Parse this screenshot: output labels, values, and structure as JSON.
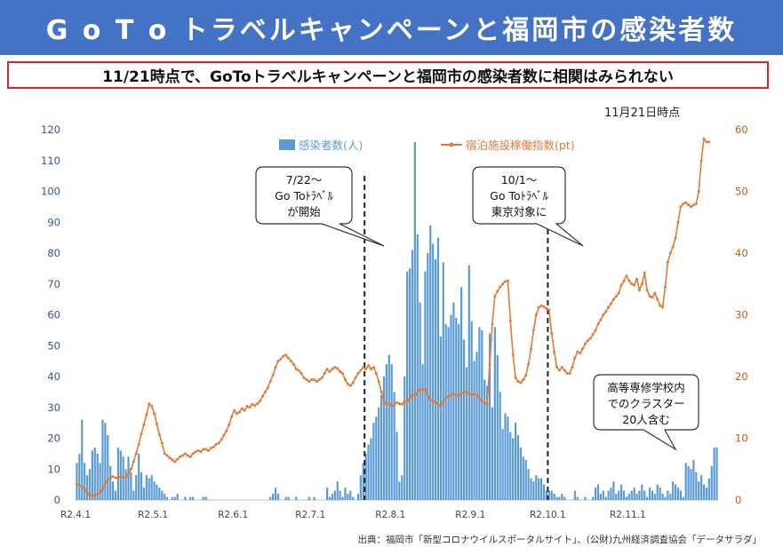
{
  "header": {
    "title": "G o T o トラベルキャンペーンと福岡市の感染者数",
    "subtitle": "11/21時点で、GoToトラベルキャンペーンと福岡市の感染者数に相関はみられない",
    "as_of": "11月21日時点",
    "source": "出典：福岡市「新型コロナウイルスポータルサイト」、(公財)九州経済調査協会「データサラダ」"
  },
  "colors": {
    "banner": "#4472c4",
    "bars": "#5b9bd5",
    "line": "#e07b39",
    "callout_border": "#333333",
    "subtitle_border": "#d9262b"
  },
  "chart_data": {
    "type": "bar+line",
    "x_ticks": [
      "R2.4.1",
      "R2.5.1",
      "R2.6.1",
      "R2.7.1",
      "R2.8.1",
      "R2.9.1",
      "R2.10.1",
      "R2.11.1"
    ],
    "x_tick_days": [
      0,
      30,
      61,
      91,
      122,
      153,
      183,
      214
    ],
    "y_left": {
      "min": 0,
      "max": 120,
      "step": 10
    },
    "y_right": {
      "min": 0,
      "max": 60,
      "step": 10
    },
    "series": [
      {
        "name": "感染者数(人)",
        "type": "bar",
        "axis": "left",
        "values": [
          12,
          15,
          26,
          12,
          8,
          10,
          16,
          17,
          15,
          12,
          26,
          25,
          21,
          11,
          6,
          3,
          17,
          16,
          14,
          10,
          14,
          9,
          3,
          8,
          15,
          9,
          4,
          8,
          7,
          8,
          6,
          5,
          4,
          3,
          2,
          1,
          0,
          1,
          1,
          2,
          0,
          0,
          1,
          0,
          1,
          1,
          0,
          0,
          0,
          1,
          1,
          0,
          0,
          0,
          0,
          0,
          0,
          0,
          0,
          0,
          0,
          0,
          0,
          0,
          0,
          0,
          0,
          0,
          0,
          0,
          0,
          0,
          0,
          0,
          0,
          1,
          2,
          4,
          2,
          0,
          0,
          1,
          1,
          0,
          0,
          1,
          0,
          0,
          0,
          0,
          1,
          0,
          1,
          0,
          0,
          0,
          0,
          4,
          1,
          2,
          3,
          6,
          3,
          1,
          4,
          2,
          3,
          1,
          0,
          2,
          8,
          12,
          15,
          18,
          20,
          25,
          27,
          30,
          34,
          40,
          44,
          47,
          44,
          35,
          22,
          6,
          8,
          40,
          74,
          75,
          81,
          116,
          86,
          64,
          44,
          74,
          80,
          89,
          83,
          78,
          85,
          53,
          77,
          57,
          56,
          60,
          64,
          59,
          57,
          69,
          52,
          43,
          76,
          58,
          45,
          48,
          56,
          55,
          39,
          37,
          54,
          30,
          56,
          47,
          35,
          23,
          28,
          27,
          22,
          20,
          25,
          21,
          17,
          14,
          13,
          10,
          7,
          6,
          8,
          7,
          7,
          5,
          3,
          3,
          3,
          2,
          1,
          1,
          2,
          1,
          0,
          0,
          0,
          3,
          1,
          0,
          0,
          1,
          0,
          0,
          1,
          4,
          5,
          2,
          3,
          1,
          3,
          4,
          6,
          2,
          3,
          5,
          3,
          1,
          2,
          3,
          4,
          2,
          3,
          5,
          3,
          1,
          4,
          3,
          2,
          5,
          4,
          2,
          1,
          3,
          2,
          6,
          5,
          4,
          3,
          1,
          12,
          11,
          10,
          13,
          9,
          6,
          8,
          5,
          4,
          7,
          11,
          17,
          17
        ]
      },
      {
        "name": "宿泊施設稼働指数(pt)",
        "type": "line",
        "axis": "right",
        "values": [
          2.6,
          2.4,
          2.2,
          1.8,
          1.2,
          0.8,
          0.6,
          0.8,
          1.0,
          1.2,
          1.8,
          2.6,
          3.2,
          3.6,
          3.8,
          3.6,
          3.6,
          3.8,
          3.6,
          3.7,
          4.2,
          5.0,
          6.2,
          7.5,
          9.0,
          10.7,
          12.2,
          13.8,
          15.6,
          15.2,
          14.0,
          12.3,
          10.6,
          9.2,
          7.5,
          7.2,
          6.8,
          6.5,
          6.2,
          6.6,
          7.0,
          7.2,
          7.5,
          7.2,
          7.0,
          7.5,
          7.8,
          8.0,
          7.8,
          8.2,
          8.2,
          8.0,
          8.4,
          8.6,
          9.0,
          9.2,
          9.8,
          10.5,
          11.2,
          12.2,
          13.5,
          14.5,
          14.0,
          14.2,
          14.8,
          14.5,
          15.2,
          15.0,
          15.5,
          15.3,
          15.6,
          16.0,
          16.8,
          17.5,
          18.2,
          19.2,
          20.2,
          21.5,
          22.5,
          22.8,
          23.3,
          23.5,
          23.0,
          22.5,
          22.0,
          21.2,
          21.0,
          20.5,
          19.8,
          19.5,
          19.2,
          19.5,
          19.5,
          19.2,
          19.5,
          19.8,
          20.5,
          21.2,
          20.8,
          21.2,
          21.5,
          21.3,
          20.8,
          20.5,
          19.5,
          18.8,
          18.5,
          19.0,
          19.8,
          20.5,
          21.0,
          21.5,
          21.2,
          21.8,
          21.2,
          21.5,
          20.5,
          19.2,
          17.5,
          16.0,
          15.5,
          15.6,
          15.2,
          15.4,
          15.8,
          15.6,
          15.5,
          16.0,
          15.8,
          16.5,
          17.2,
          16.8,
          17.5,
          18.0,
          17.8,
          18.0,
          17.0,
          16.2,
          16.0,
          15.8,
          15.5,
          15.2,
          16.0,
          16.5,
          16.8,
          17.0,
          17.2,
          17.0,
          16.8,
          17.2,
          17.5,
          17.5,
          17.2,
          17.0,
          17.2,
          17.0,
          16.5,
          16.0,
          15.8,
          15.5,
          22.0,
          28.5,
          33.0,
          33.8,
          34.5,
          35.0,
          35.4,
          35.5,
          29.0,
          23.5,
          19.8,
          19.2,
          19.0,
          19.5,
          20.2,
          22.0,
          24.5,
          27.5,
          30.0,
          31.2,
          31.5,
          31.3,
          31.0,
          30.8,
          27.0,
          24.0,
          21.5,
          21.0,
          21.5,
          21.0,
          20.5,
          20.5,
          21.5,
          23.0,
          24.0,
          23.8,
          24.5,
          25.3,
          25.8,
          26.2,
          26.8,
          27.5,
          28.5,
          29.2,
          30.0,
          30.5,
          31.2,
          31.8,
          32.5,
          33.0,
          33.5,
          34.8,
          35.5,
          36.3,
          35.5,
          35.0,
          34.8,
          35.8,
          34.0,
          35.0,
          36.8,
          34.0,
          33.0,
          32.8,
          33.5,
          32.5,
          31.5,
          31.2,
          34.5,
          38.5,
          40.0,
          41.0,
          42.5,
          45.0,
          47.5,
          48.0,
          48.2,
          47.8,
          47.5,
          47.8,
          48.0,
          50.0,
          55.0,
          58.5,
          58.0,
          58.0
        ]
      }
    ],
    "events": [
      {
        "day": 112,
        "label_lines": [
          "7/22〜",
          "Go Toﾄﾗﾍﾞﾙ",
          "が開始"
        ]
      },
      {
        "day": 183,
        "label_lines": [
          "10/1〜",
          "Go Toﾄﾗﾍﾞﾙ",
          "東京対象に"
        ]
      }
    ],
    "note": {
      "label_lines": [
        "高等専修学校内",
        "でのクラスター",
        "20人含む"
      ]
    },
    "legend": "top-center"
  }
}
